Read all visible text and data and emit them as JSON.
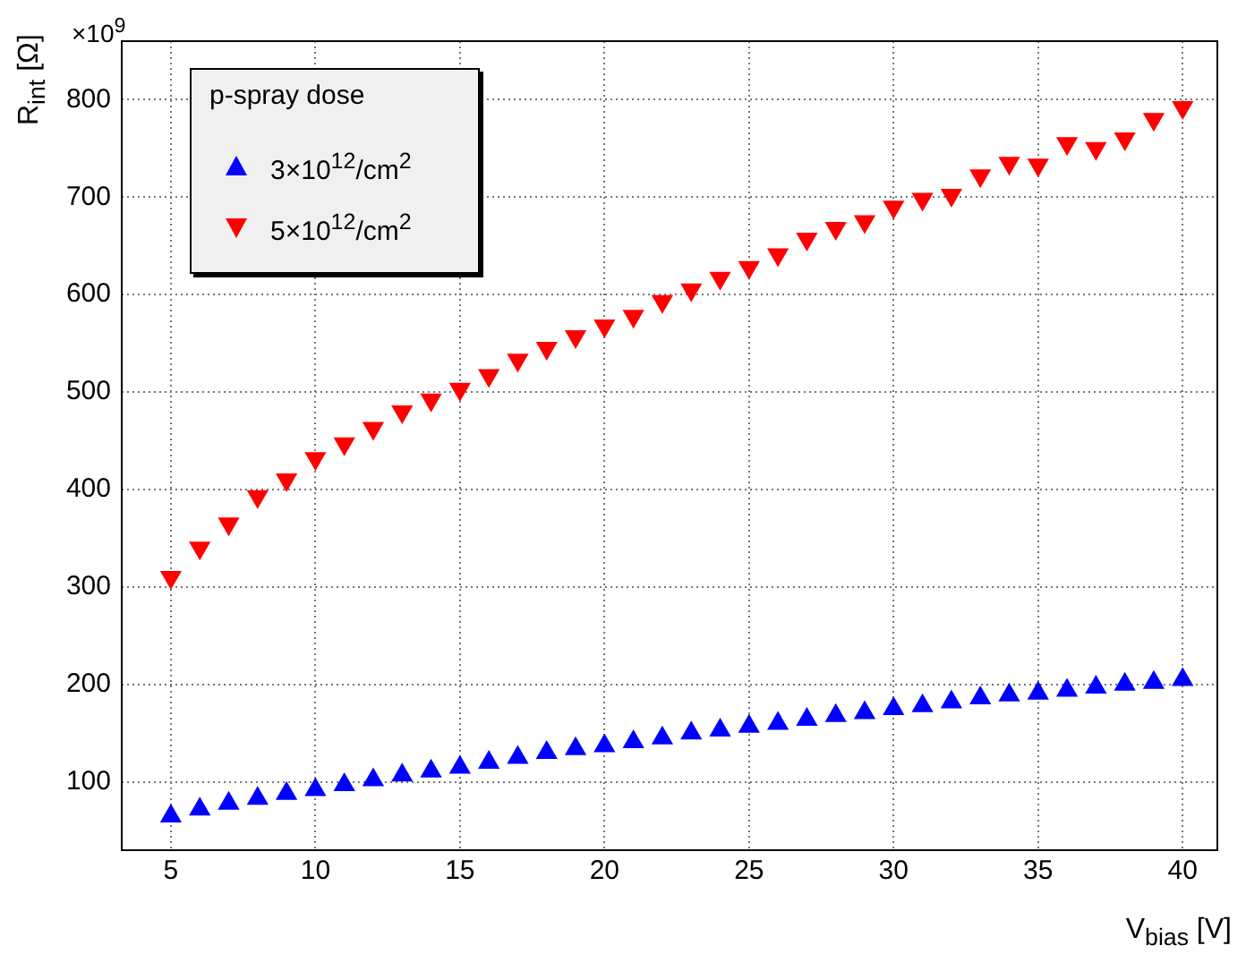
{
  "chart_data": {
    "type": "scatter",
    "xlabel": "V$_{bias}$ [V]",
    "ylabel": "R$_{int}$ [Ω]",
    "legend_title": "p-spray dose",
    "annotations": [
      "×10$^{9}$"
    ],
    "x": [
      5,
      6,
      7,
      8,
      9,
      10,
      11,
      12,
      13,
      14,
      15,
      16,
      17,
      18,
      19,
      20,
      21,
      22,
      23,
      24,
      25,
      26,
      27,
      28,
      29,
      30,
      31,
      32,
      33,
      34,
      35,
      36,
      37,
      38,
      39,
      40
    ],
    "series": [
      {
        "name": "3×10$^{12}$/cm$^{2}$",
        "color": "#0000ff",
        "marker": "triangle",
        "values": [
          65,
          72,
          78,
          83,
          88,
          92,
          97,
          102,
          107,
          111,
          115,
          120,
          125,
          130,
          134,
          137,
          141,
          145,
          150,
          153,
          157,
          160,
          164,
          168,
          171,
          175,
          178,
          182,
          186,
          189,
          191,
          194,
          197,
          200,
          202,
          205
        ]
      },
      {
        "name": "5×10$^{12}$/cm$^{2}$",
        "color": "#ff0000",
        "marker": "triangle-down",
        "values": [
          310,
          340,
          365,
          393,
          410,
          432,
          447,
          463,
          480,
          492,
          503,
          517,
          533,
          545,
          557,
          568,
          578,
          593,
          605,
          617,
          628,
          641,
          657,
          668,
          675,
          690,
          698,
          702,
          722,
          735,
          733,
          755,
          750,
          760,
          780,
          792
        ]
      }
    ],
    "xlim": [
      3.3,
      41.2
    ],
    "xticks": [
      5,
      10,
      15,
      20,
      25,
      30,
      35,
      40
    ],
    "ylim": [
      30,
      860
    ],
    "yticks": [
      100,
      200,
      300,
      400,
      500,
      600,
      700,
      800
    ],
    "grid": true,
    "legend": "top left"
  }
}
